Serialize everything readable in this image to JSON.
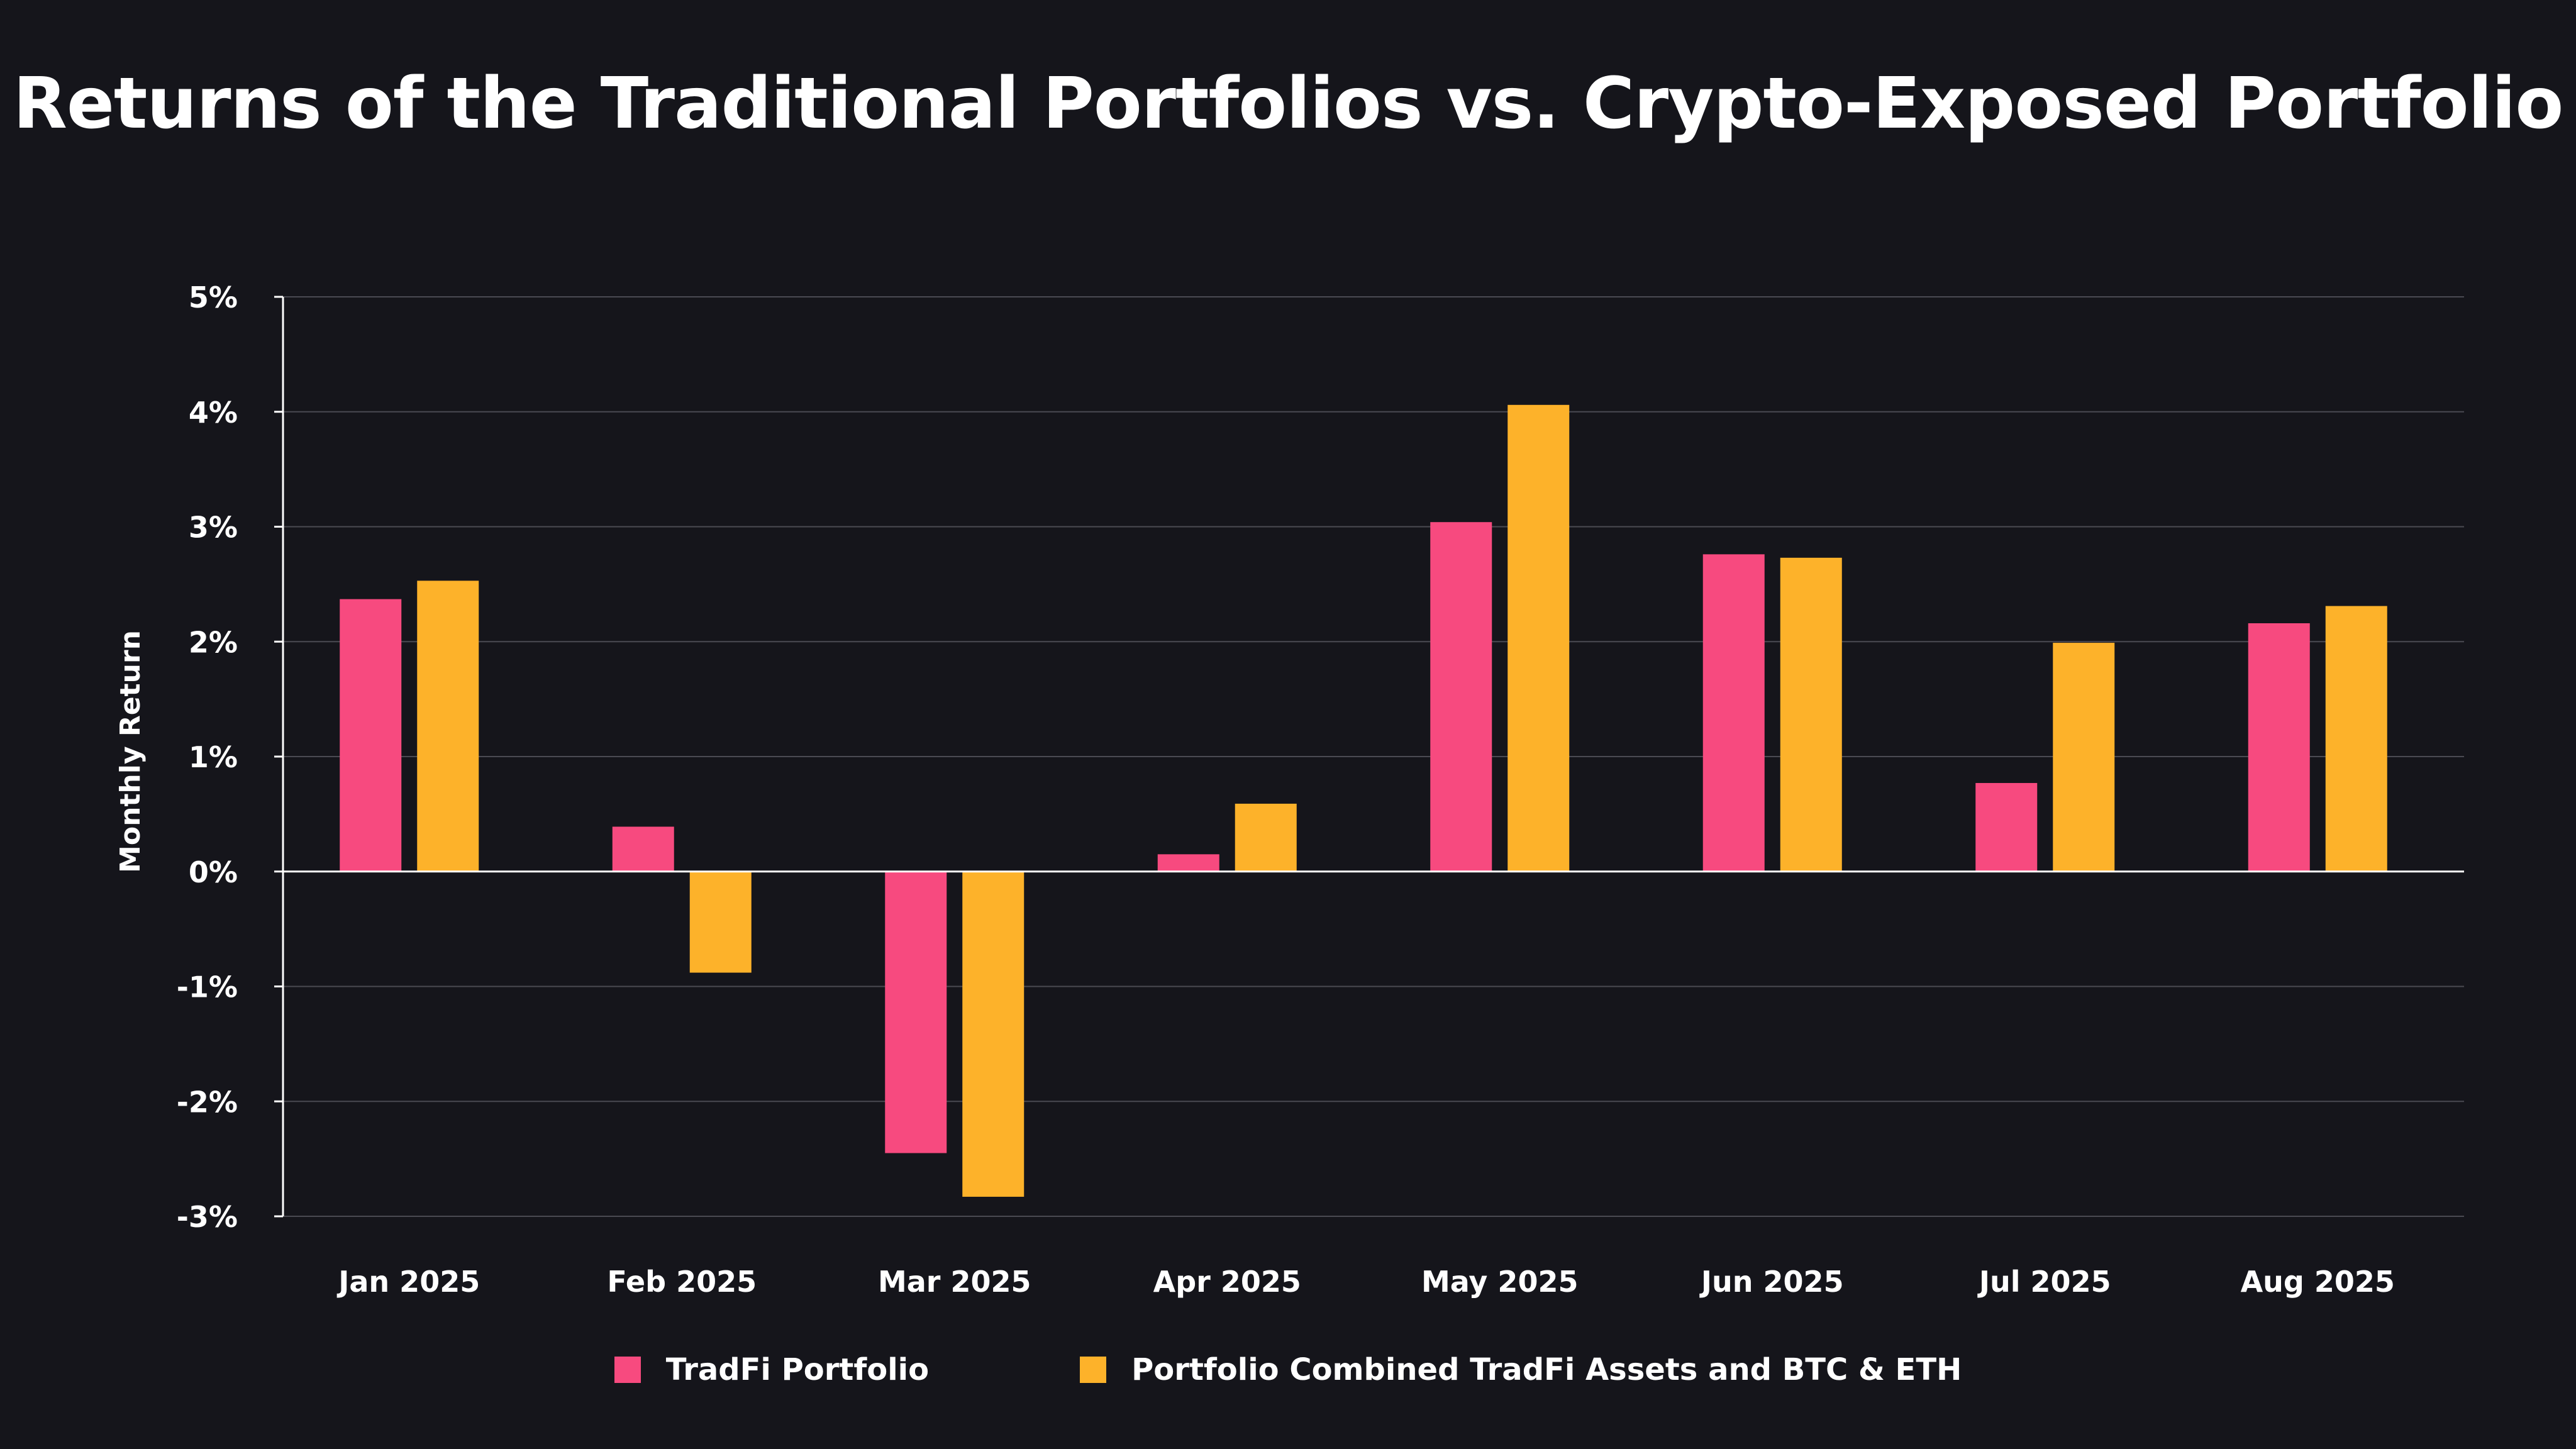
{
  "chart_data": {
    "type": "bar",
    "title": "Returns of the Traditional Portfolios vs. Crypto-Exposed Portfolio",
    "xlabel": "",
    "ylabel": "Monthly Return",
    "ylim": [
      -3,
      5
    ],
    "yticks": [
      5,
      4,
      3,
      2,
      1,
      0,
      -1,
      -2,
      -3
    ],
    "ytick_labels": [
      "5%",
      "4%",
      "3%",
      "2%",
      "1%",
      "0%",
      "-1%",
      "-2%",
      "-3%"
    ],
    "categories": [
      "Jan 2025",
      "Feb 2025",
      "Mar 2025",
      "Apr 2025",
      "May 2025",
      "Jun 2025",
      "Jul 2025",
      "Aug 2025"
    ],
    "series": [
      {
        "name": "TradFi Portfolio",
        "color": "#f74a7f",
        "values": [
          2.37,
          0.39,
          -2.45,
          0.15,
          3.04,
          2.76,
          0.77,
          2.16
        ]
      },
      {
        "name": "Portfolio Combined TradFi Assets and BTC & ETH",
        "color": "#fdb22a",
        "values": [
          2.53,
          -0.88,
          -2.83,
          0.59,
          4.06,
          2.73,
          1.99,
          2.31
        ]
      }
    ],
    "grid": true,
    "legend_position": "bottom-center"
  },
  "colors": {
    "background": "#15151b",
    "grid": "#4a4a52",
    "axis": "#ffffff"
  }
}
